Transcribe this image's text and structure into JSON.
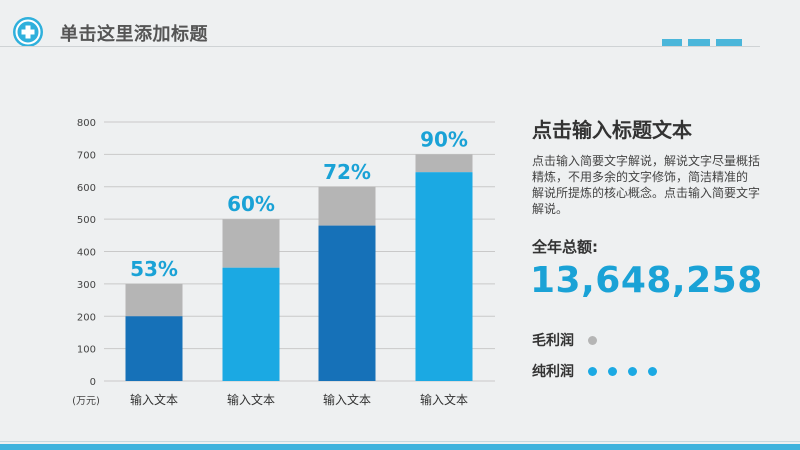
{
  "header": {
    "title": "单击这里添加标题"
  },
  "colors": {
    "accent": "#1aa2d6",
    "bar_dark": "#1671b8",
    "bar_light": "#1ba9e3",
    "bar_gray": "#b5b5b5",
    "grid": "#c9c9c9"
  },
  "chart_data": {
    "type": "bar",
    "categories": [
      "输入文本",
      "输入文本",
      "输入文本",
      "输入文本"
    ],
    "series": [
      {
        "values": [
          200,
          350,
          480,
          645
        ]
      },
      {
        "values": [
          300,
          500,
          600,
          700
        ]
      }
    ],
    "percent_labels": [
      "53%",
      "60%",
      "72%",
      "90%"
    ],
    "unit_label": "(万元)",
    "ylim": [
      0,
      800
    ],
    "yticks": [
      0,
      100,
      200,
      300,
      400,
      500,
      600,
      700,
      800
    ],
    "grid": true
  },
  "panel": {
    "title": "点击输入标题文本",
    "description": "点击输入简要文字解说，解说文字尽量概括精炼，不用多余的文字修饰，简洁精准的 解说所提炼的核心概念。点击输入简要文字解说。",
    "total_label": "全年总额:",
    "total_value": "13,648,258",
    "legend": [
      {
        "label": "毛利润",
        "dots": 1,
        "color": "#b5b5b5"
      },
      {
        "label": "纯利润",
        "dots": 4,
        "color": "#1ba9e3"
      }
    ]
  }
}
